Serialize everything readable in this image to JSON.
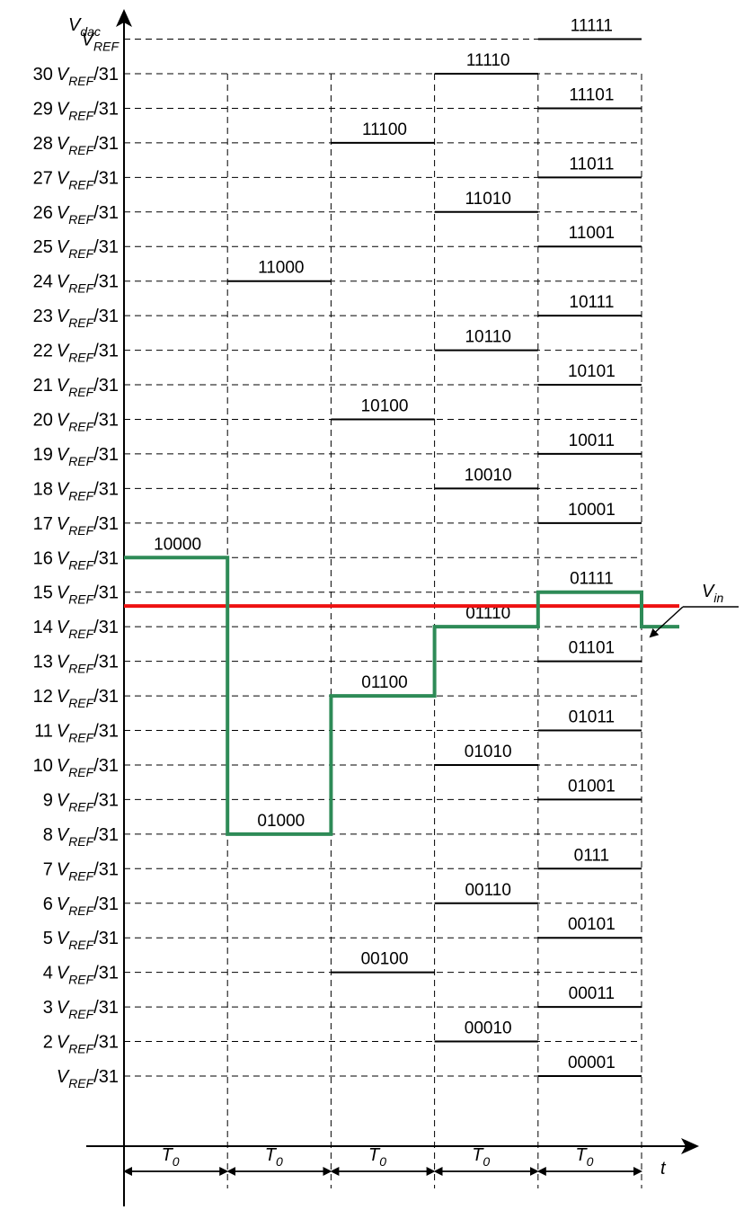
{
  "y_axis_label": {
    "main": "V",
    "sub": "dac"
  },
  "x_axis_label": "t",
  "ref_symbol": {
    "main": "V",
    "sub": "REF"
  },
  "fraction_suffix": "/31",
  "vin_label": {
    "main": "V",
    "sub": "in"
  },
  "period_label": {
    "main": "T",
    "sub": "0"
  },
  "num_periods": 5,
  "chart_data": {
    "type": "line",
    "y_levels": [
      1,
      2,
      3,
      4,
      5,
      6,
      7,
      8,
      9,
      10,
      11,
      12,
      13,
      14,
      15,
      16,
      17,
      18,
      19,
      20,
      21,
      22,
      23,
      24,
      25,
      26,
      27,
      28,
      29,
      30,
      31
    ],
    "y_tick_labels": [
      {
        "level": 31,
        "coef": "",
        "ref_only": true
      },
      {
        "level": 30,
        "coef": "30"
      },
      {
        "level": 29,
        "coef": "29"
      },
      {
        "level": 28,
        "coef": "28"
      },
      {
        "level": 27,
        "coef": "27"
      },
      {
        "level": 26,
        "coef": "26"
      },
      {
        "level": 25,
        "coef": "25"
      },
      {
        "level": 24,
        "coef": "24"
      },
      {
        "level": 23,
        "coef": "23"
      },
      {
        "level": 22,
        "coef": "22"
      },
      {
        "level": 21,
        "coef": "21"
      },
      {
        "level": 20,
        "coef": "20"
      },
      {
        "level": 19,
        "coef": "19"
      },
      {
        "level": 18,
        "coef": "18"
      },
      {
        "level": 17,
        "coef": "17"
      },
      {
        "level": 16,
        "coef": "16"
      },
      {
        "level": 15,
        "coef": "15"
      },
      {
        "level": 14,
        "coef": "14"
      },
      {
        "level": 13,
        "coef": "13"
      },
      {
        "level": 12,
        "coef": "12"
      },
      {
        "level": 11,
        "coef": "11"
      },
      {
        "level": 10,
        "coef": "10"
      },
      {
        "level": 9,
        "coef": "9"
      },
      {
        "level": 8,
        "coef": "8"
      },
      {
        "level": 7,
        "coef": "7"
      },
      {
        "level": 6,
        "coef": "6"
      },
      {
        "level": 5,
        "coef": "5"
      },
      {
        "level": 4,
        "coef": "4"
      },
      {
        "level": 3,
        "coef": "3"
      },
      {
        "level": 2,
        "coef": "2"
      },
      {
        "level": 1,
        "coef": ""
      }
    ],
    "code_levels": [
      {
        "period": 1,
        "level": 16,
        "code": "10000"
      },
      {
        "period": 2,
        "level": 24,
        "code": "11000"
      },
      {
        "period": 2,
        "level": 8,
        "code": "01000"
      },
      {
        "period": 3,
        "level": 28,
        "code": "11100"
      },
      {
        "period": 3,
        "level": 20,
        "code": "10100"
      },
      {
        "period": 3,
        "level": 12,
        "code": "01100"
      },
      {
        "period": 3,
        "level": 4,
        "code": "00100"
      },
      {
        "period": 4,
        "level": 30,
        "code": "11110"
      },
      {
        "period": 4,
        "level": 26,
        "code": "11010"
      },
      {
        "period": 4,
        "level": 22,
        "code": "10110"
      },
      {
        "period": 4,
        "level": 18,
        "code": "10010"
      },
      {
        "period": 4,
        "level": 14,
        "code": "01110"
      },
      {
        "period": 4,
        "level": 10,
        "code": "01010"
      },
      {
        "period": 4,
        "level": 6,
        "code": "00110"
      },
      {
        "period": 4,
        "level": 2,
        "code": "00010"
      },
      {
        "period": 5,
        "level": 31,
        "code": "11111"
      },
      {
        "period": 5,
        "level": 29,
        "code": "11101"
      },
      {
        "period": 5,
        "level": 27,
        "code": "11011"
      },
      {
        "period": 5,
        "level": 25,
        "code": "11001"
      },
      {
        "period": 5,
        "level": 23,
        "code": "10111"
      },
      {
        "period": 5,
        "level": 21,
        "code": "10101"
      },
      {
        "period": 5,
        "level": 19,
        "code": "10011"
      },
      {
        "period": 5,
        "level": 17,
        "code": "10001"
      },
      {
        "period": 5,
        "level": 15,
        "code": "01111"
      },
      {
        "period": 5,
        "level": 13,
        "code": "01101"
      },
      {
        "period": 5,
        "level": 11,
        "code": "01011"
      },
      {
        "period": 5,
        "level": 9,
        "code": "01001"
      },
      {
        "period": 5,
        "level": 7,
        "code": "0111"
      },
      {
        "period": 5,
        "level": 5,
        "code": "00101"
      },
      {
        "period": 5,
        "level": 3,
        "code": "00011"
      },
      {
        "period": 5,
        "level": 1,
        "code": "00001"
      }
    ],
    "series": [
      {
        "name": "V_dac",
        "color": "#2e8b57",
        "values": [
          16,
          8,
          12,
          14,
          15,
          14
        ]
      },
      {
        "name": "V_in",
        "color": "#ee1111",
        "value": 14.6
      }
    ],
    "grid": true
  }
}
